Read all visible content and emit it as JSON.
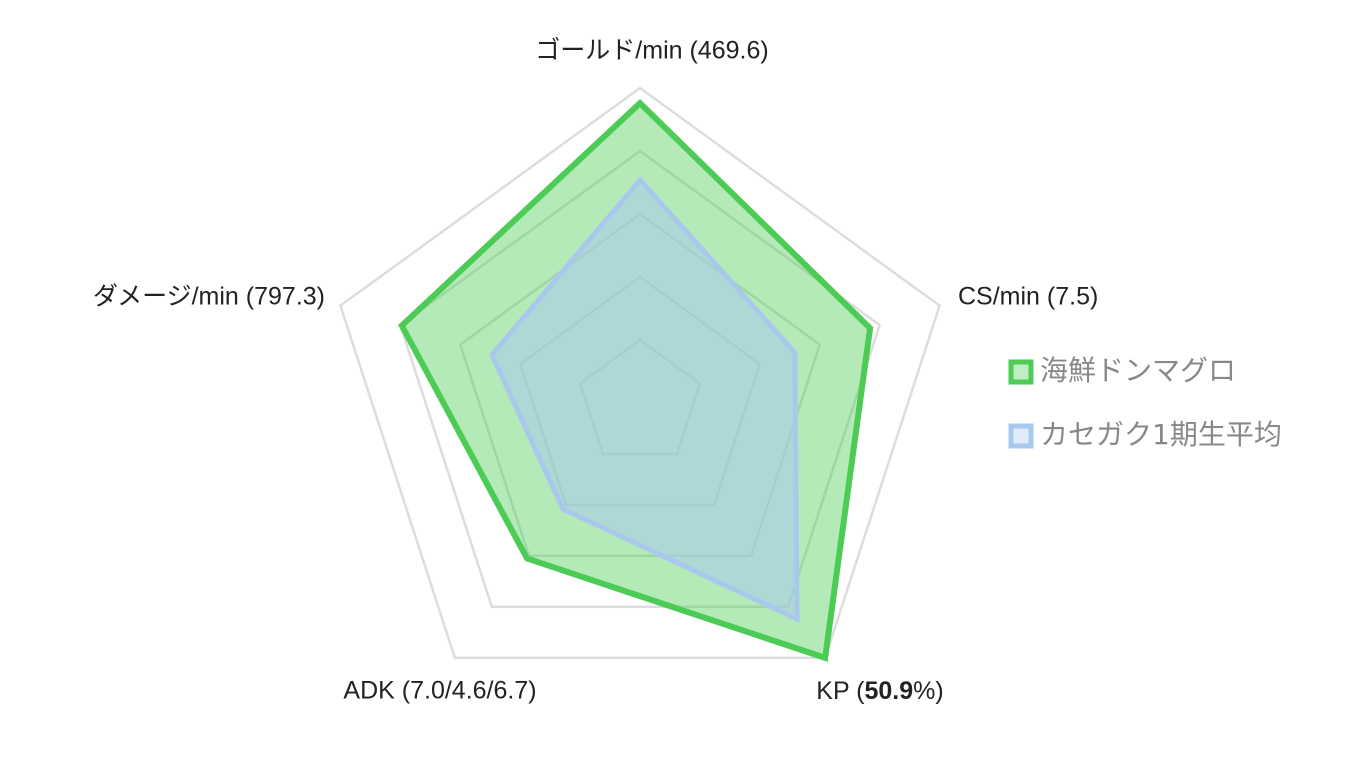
{
  "chart_data": {
    "type": "radar",
    "categories": [
      "ゴールド/min (469.6)",
      "CS/min (7.5)",
      {
        "parts": [
          "KP (",
          "50.9",
          "%)"
        ],
        "bold_part": 1
      },
      "ADK (7.0/4.6/6.7)",
      "ダメージ/min (797.3)"
    ],
    "rlim": [
      0,
      100
    ],
    "rticks": [
      20,
      40,
      60,
      80,
      100
    ],
    "grid": true,
    "series": [
      {
        "name": "海鮮ドンマグロ",
        "color": "#4ccc55",
        "values": [
          95.2,
          76.8,
          100,
          61,
          79.5
        ]
      },
      {
        "name": "カセガク1期生平均",
        "color": "#a9c8ee",
        "values": [
          70.8,
          51.7,
          84.8,
          41.6,
          49.4
        ]
      }
    ]
  }
}
